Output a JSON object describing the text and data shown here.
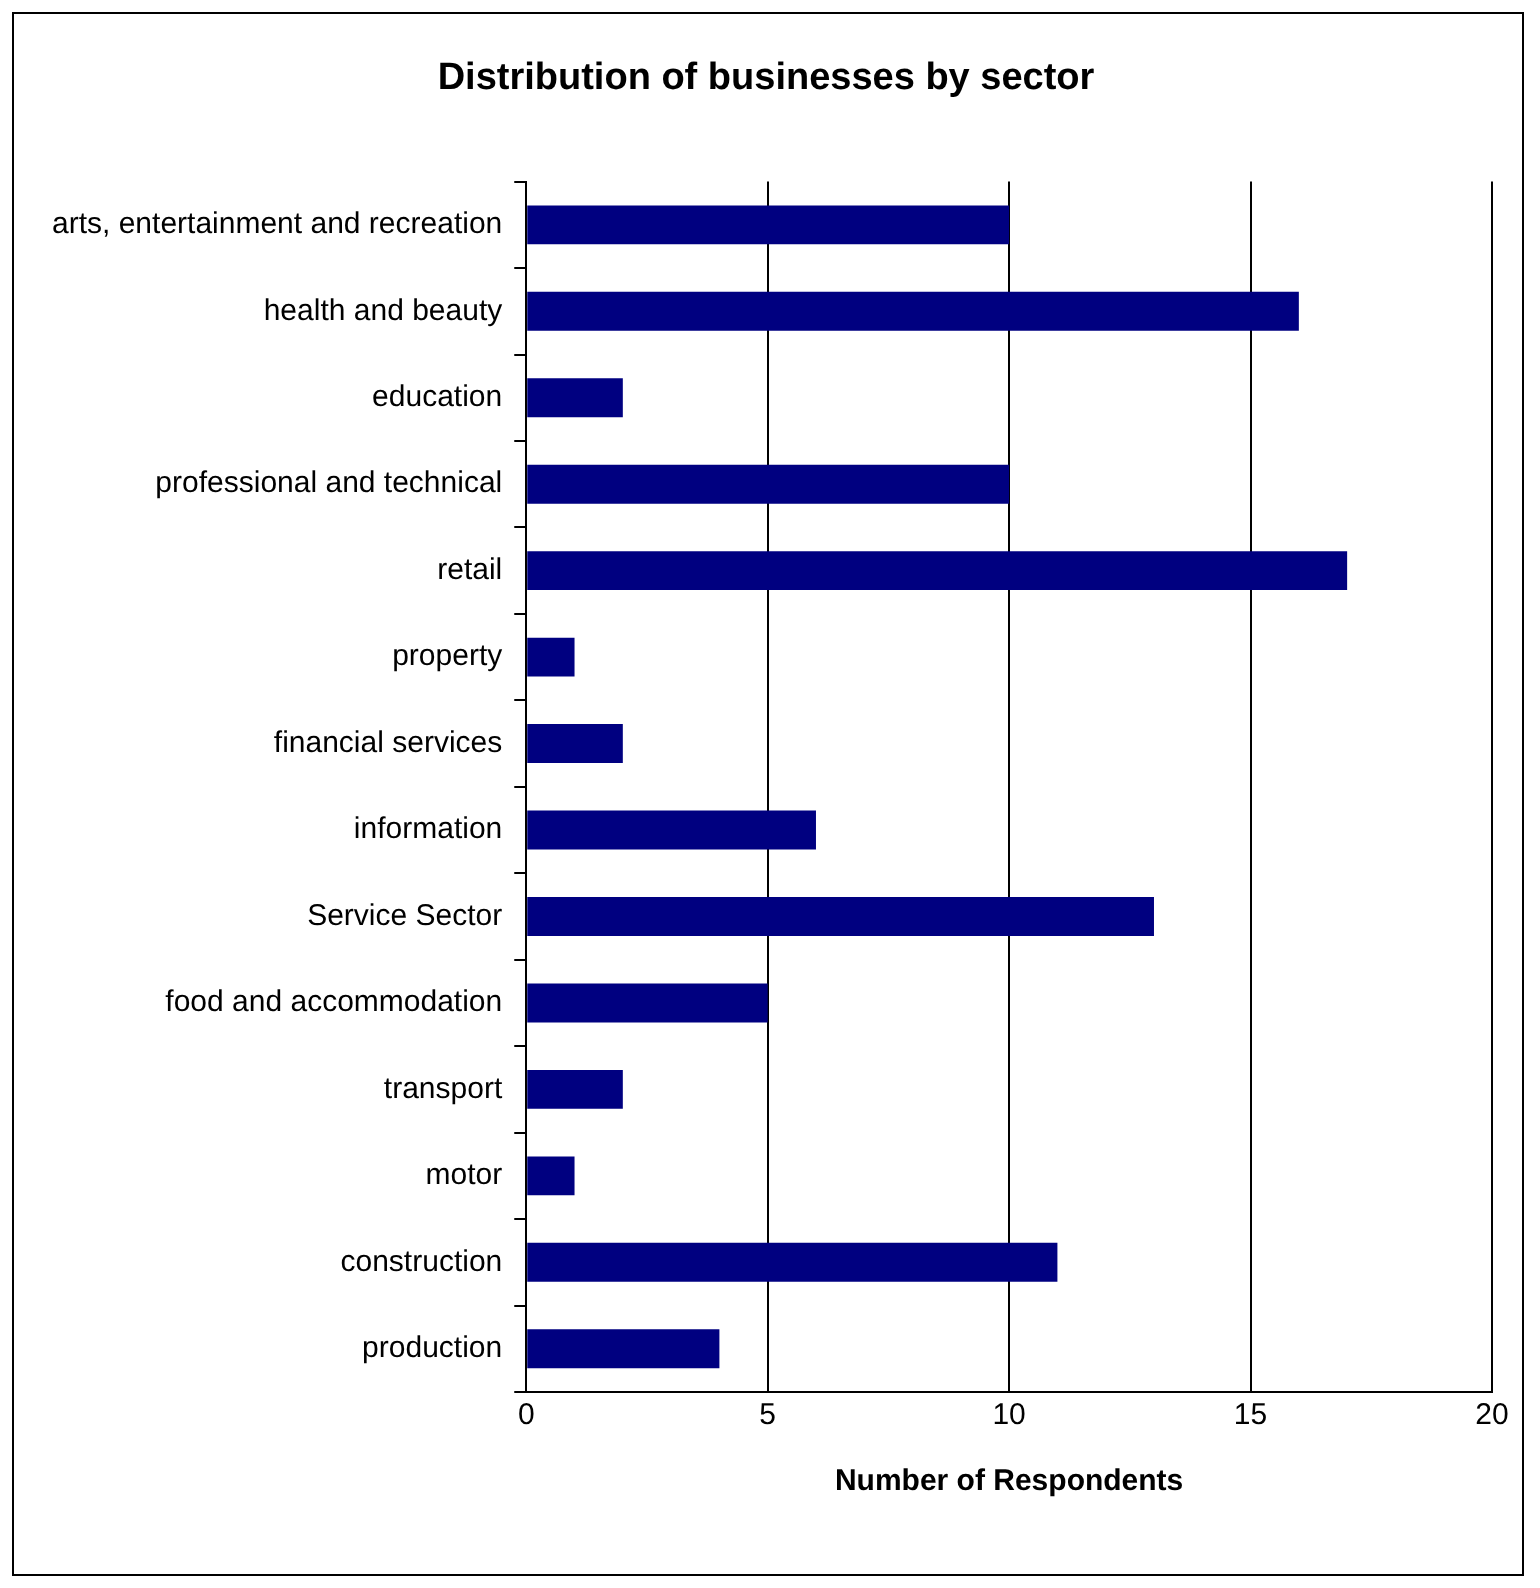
{
  "chart_data": {
    "type": "bar",
    "orientation": "horizontal",
    "title": "Distribution of businesses by sector",
    "xlabel": "Number of Respondents",
    "categories": [
      "arts, entertainment and recreation",
      "health and beauty",
      "education",
      "professional and technical",
      "retail",
      "property",
      "financial services",
      "information",
      "Service Sector",
      "food and accommodation",
      "transport",
      "motor",
      "construction",
      "production"
    ],
    "values": [
      10,
      16,
      2,
      10,
      17,
      1,
      2,
      6,
      13,
      5,
      2,
      1,
      11,
      4
    ],
    "color": "#000080",
    "xlim": [
      0,
      20
    ],
    "xticks": [
      0,
      5,
      10,
      15,
      20
    ],
    "grid": "x",
    "legend": false
  }
}
